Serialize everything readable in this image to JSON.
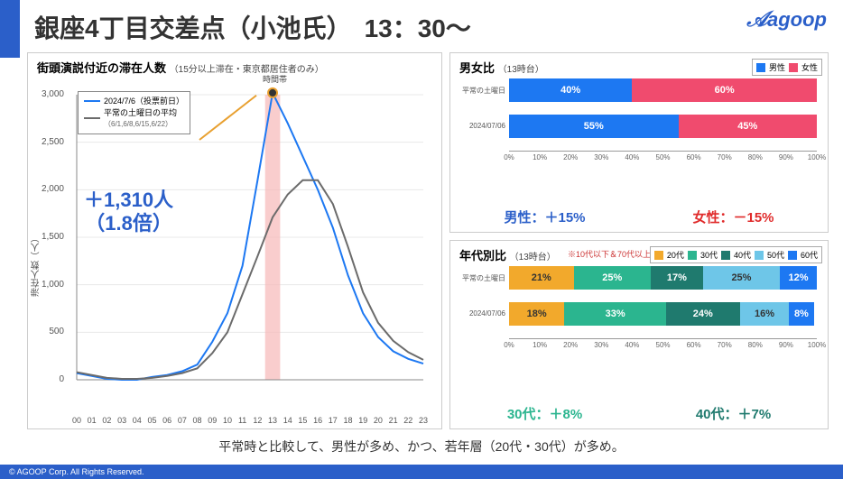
{
  "header": {
    "title": "銀座4丁目交差点（小池氏）　13：30〜",
    "logo_text": "agoop"
  },
  "line_chart": {
    "title": "街頭演説付近の滞在人数",
    "subtitle": "（15分以上滞在・東京都居住者のみ）",
    "x_band_label": "時間帯",
    "y_label": "滞在人数（人）",
    "ylim": [
      0,
      3000
    ],
    "ytick_step": 500,
    "x_ticks": [
      "00",
      "01",
      "02",
      "03",
      "04",
      "05",
      "06",
      "07",
      "08",
      "09",
      "10",
      "11",
      "12",
      "13",
      "14",
      "15",
      "16",
      "17",
      "18",
      "19",
      "20",
      "21",
      "22",
      "23"
    ],
    "highlight_hour": 13,
    "highlight_color": "#f6b8b8",
    "grid_color": "#e8e8e8",
    "series": [
      {
        "name": "2024/7/6（投票前日）",
        "color": "#1d78f2",
        "width": 2,
        "values": [
          70,
          40,
          10,
          0,
          0,
          30,
          50,
          90,
          160,
          400,
          700,
          1200,
          2100,
          3020,
          2700,
          2350,
          2000,
          1600,
          1100,
          700,
          450,
          300,
          220,
          170
        ]
      },
      {
        "name": "平常の土曜日の平均",
        "sub": "（6/1,6/8,6/15,6/22）",
        "color": "#6b6b6b",
        "width": 2,
        "values": [
          80,
          50,
          20,
          10,
          10,
          20,
          40,
          70,
          120,
          280,
          500,
          900,
          1300,
          1710,
          1950,
          2100,
          2100,
          1850,
          1400,
          920,
          600,
          410,
          290,
          210
        ]
      }
    ],
    "callout": {
      "line1": "＋1,310人",
      "line2": "（1.8倍）",
      "marker_color": "#e8a030"
    }
  },
  "gender_chart": {
    "title": "男女比",
    "subtitle": "（13時台）",
    "legend": [
      {
        "label": "男性",
        "color": "#1d78f2"
      },
      {
        "label": "女性",
        "color": "#f04b6e"
      }
    ],
    "rows": [
      {
        "label": "平常の土曜日",
        "segs": [
          {
            "v": 40,
            "c": "#1d78f2"
          },
          {
            "v": 60,
            "c": "#f04b6e"
          }
        ]
      },
      {
        "label": "2024/07/06",
        "segs": [
          {
            "v": 55,
            "c": "#1d78f2"
          },
          {
            "v": 45,
            "c": "#f04b6e"
          }
        ]
      }
    ],
    "x_step": 10,
    "summary": [
      {
        "text": "男性：＋15%",
        "color": "#2b5fc9"
      },
      {
        "text": "女性：－15%",
        "color": "#e02b2b"
      }
    ]
  },
  "age_chart": {
    "title": "年代別比",
    "subtitle": "（13時台）",
    "note": "※10代以下＆70代以上を除く",
    "legend": [
      {
        "label": "20代",
        "color": "#f2a92c"
      },
      {
        "label": "30代",
        "color": "#2bb58f"
      },
      {
        "label": "40代",
        "color": "#1f7a6e"
      },
      {
        "label": "50代",
        "color": "#6ec6e8"
      },
      {
        "label": "60代",
        "color": "#1d78f2"
      }
    ],
    "rows": [
      {
        "label": "平常の土曜日",
        "segs": [
          {
            "v": 21,
            "c": "#f2a92c"
          },
          {
            "v": 25,
            "c": "#2bb58f"
          },
          {
            "v": 17,
            "c": "#1f7a6e"
          },
          {
            "v": 25,
            "c": "#6ec6e8"
          },
          {
            "v": 12,
            "c": "#1d78f2"
          }
        ]
      },
      {
        "label": "2024/07/06",
        "segs": [
          {
            "v": 18,
            "c": "#f2a92c"
          },
          {
            "v": 33,
            "c": "#2bb58f"
          },
          {
            "v": 24,
            "c": "#1f7a6e"
          },
          {
            "v": 16,
            "c": "#6ec6e8"
          },
          {
            "v": 8,
            "c": "#1d78f2"
          }
        ]
      }
    ],
    "label_color_override": {
      "50代": "#333",
      "20代": "#333"
    },
    "x_step": 10,
    "summary": [
      {
        "text": "30代：＋8%",
        "color": "#2bb58f"
      },
      {
        "text": "40代：＋7%",
        "color": "#1f7a6e"
      }
    ]
  },
  "footer": {
    "note": "平常時と比較して、男性が多め、かつ、若年層（20代・30代）が多め。",
    "copyright": "© AGOOP Corp. All Rights Reserved."
  }
}
